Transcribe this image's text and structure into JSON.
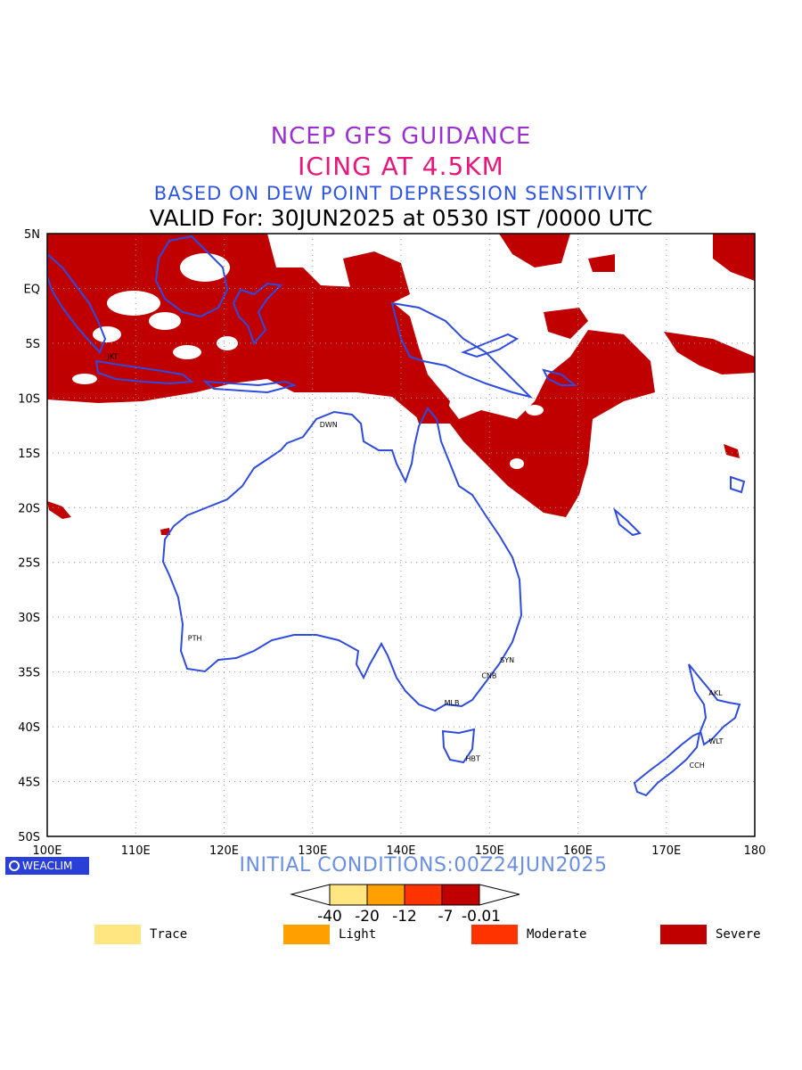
{
  "titles": {
    "line1": "NCEP GFS GUIDANCE",
    "line2": "ICING AT 4.5KM",
    "line3": "BASED ON DEW POINT DEPRESSION SENSITIVITY",
    "line4": "VALID For: 30JUN2025 at 0530 IST /0000 UTC"
  },
  "map": {
    "lon_range": [
      100,
      180
    ],
    "lat_range": [
      -50,
      5
    ],
    "lat_labels": [
      "5N",
      "EQ",
      "5S",
      "10S",
      "15S",
      "20S",
      "25S",
      "30S",
      "35S",
      "40S",
      "45S",
      "50S"
    ],
    "lon_labels": [
      "100E",
      "110E",
      "120E",
      "130E",
      "140E",
      "150E",
      "160E",
      "170E",
      "180"
    ],
    "grid": "dotted",
    "coast_color": "#2e4be0",
    "fill_color": "#c00000",
    "stations": [
      {
        "code": "JKT",
        "lon": 106.8,
        "lat": -6.2
      },
      {
        "code": "DWN",
        "lon": 130.8,
        "lat": -12.4
      },
      {
        "code": "PTH",
        "lon": 115.9,
        "lat": -31.9
      },
      {
        "code": "SYN",
        "lon": 151.2,
        "lat": -33.9
      },
      {
        "code": "CNB",
        "lon": 149.1,
        "lat": -35.3
      },
      {
        "code": "MLB",
        "lon": 144.9,
        "lat": -37.8
      },
      {
        "code": "HBT",
        "lon": 147.3,
        "lat": -42.9
      },
      {
        "code": "AKL",
        "lon": 174.8,
        "lat": -36.9
      },
      {
        "code": "WLT",
        "lon": 174.8,
        "lat": -41.3
      },
      {
        "code": "CCH",
        "lon": 172.6,
        "lat": -43.5
      }
    ]
  },
  "brand": "WEACLIM",
  "initial_conditions": "INITIAL CONDITIONS:00Z24JUN2025",
  "colorbar": {
    "ticks": [
      "-40",
      "-20",
      "-12",
      "-7",
      "-0.01"
    ],
    "colors": [
      "#ffe680",
      "#ffa000",
      "#ff3300",
      "#c00000"
    ]
  },
  "legend": [
    {
      "label": "Trace",
      "color": "#ffe680"
    },
    {
      "label": "Light",
      "color": "#ffa000"
    },
    {
      "label": "Moderate",
      "color": "#ff3300"
    },
    {
      "label": "Severe",
      "color": "#c00000"
    }
  ]
}
